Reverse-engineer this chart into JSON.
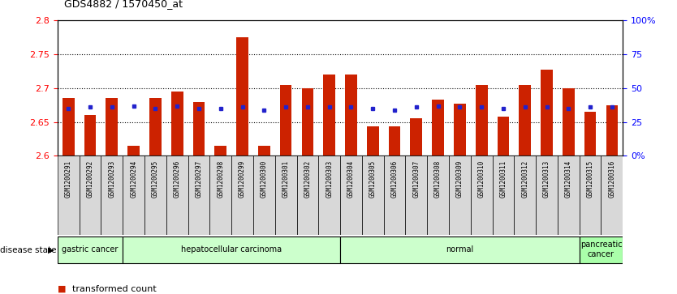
{
  "title": "GDS4882 / 1570450_at",
  "samples": [
    "GSM1200291",
    "GSM1200292",
    "GSM1200293",
    "GSM1200294",
    "GSM1200295",
    "GSM1200296",
    "GSM1200297",
    "GSM1200298",
    "GSM1200299",
    "GSM1200300",
    "GSM1200301",
    "GSM1200302",
    "GSM1200303",
    "GSM1200304",
    "GSM1200305",
    "GSM1200306",
    "GSM1200307",
    "GSM1200308",
    "GSM1200309",
    "GSM1200310",
    "GSM1200311",
    "GSM1200312",
    "GSM1200313",
    "GSM1200314",
    "GSM1200315",
    "GSM1200316"
  ],
  "bar_values": [
    2.685,
    2.66,
    2.685,
    2.615,
    2.685,
    2.695,
    2.68,
    2.615,
    2.775,
    2.615,
    2.705,
    2.7,
    2.72,
    2.72,
    2.643,
    2.643,
    2.655,
    2.683,
    2.677,
    2.705,
    2.658,
    2.705,
    2.728,
    2.7,
    2.665,
    2.675
  ],
  "percentile_values": [
    35,
    36,
    36,
    37,
    35,
    37,
    35,
    35,
    36,
    34,
    36,
    36,
    36,
    36,
    35,
    34,
    36,
    37,
    36,
    36,
    35,
    36,
    36,
    35,
    36,
    36
  ],
  "disease_groups": [
    {
      "label": "gastric cancer",
      "start": 0,
      "end": 3,
      "color": "#ccffcc"
    },
    {
      "label": "hepatocellular carcinoma",
      "start": 3,
      "end": 13,
      "color": "#ccffcc"
    },
    {
      "label": "normal",
      "start": 13,
      "end": 24,
      "color": "#ccffcc"
    },
    {
      "label": "pancreatic\ncancer",
      "start": 24,
      "end": 26,
      "color": "#aaffaa"
    }
  ],
  "ymin": 2.6,
  "ymax": 2.8,
  "bar_color": "#cc2200",
  "dot_color": "#2222cc",
  "bg_color": "#ffffff",
  "tick_label_bg": "#dddddd",
  "right_axis_ticks": [
    0,
    25,
    50,
    75,
    100
  ],
  "right_axis_labels": [
    "0",
    "25",
    "50",
    "75",
    "100%"
  ]
}
